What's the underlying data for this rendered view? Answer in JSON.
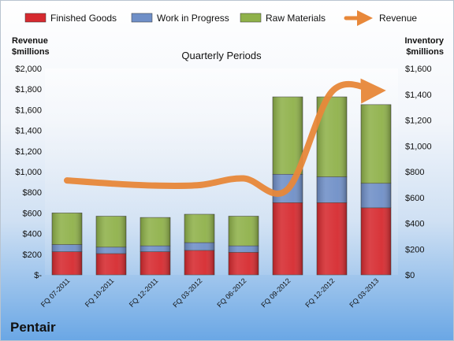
{
  "brand": "Pentair",
  "chart_data": {
    "type": "bar",
    "stacked": true,
    "subtitle": "Quarterly Periods",
    "categories": [
      "FQ 07-2011",
      "FQ 10-2011",
      "FQ 12-2011",
      "FQ 03-2012",
      "FQ 06-2012",
      "FQ 09-2012",
      "FQ 12-2012",
      "FQ 03-2013"
    ],
    "series": [
      {
        "name": "Finished Goods",
        "type": "bar",
        "axis": "right",
        "color": "#d62a2f",
        "values": [
          180,
          165,
          180,
          190,
          175,
          560,
          560,
          520
        ]
      },
      {
        "name": "Work in Progress",
        "type": "bar",
        "axis": "right",
        "color": "#6f8fc7",
        "values": [
          55,
          50,
          45,
          60,
          50,
          220,
          200,
          190
        ]
      },
      {
        "name": "Raw Materials",
        "type": "bar",
        "axis": "right",
        "color": "#8fb14a",
        "values": [
          245,
          240,
          220,
          220,
          230,
          600,
          620,
          610
        ]
      },
      {
        "name": "Revenue",
        "type": "line",
        "axis": "left",
        "color": "#e8883a",
        "values": [
          915,
          885,
          865,
          870,
          935,
          830,
          1775,
          1785
        ]
      }
    ],
    "left_axis": {
      "title_lines": [
        "Revenue",
        "$millions"
      ],
      "min": 0,
      "max": 2000,
      "step": 200,
      "tick_labels": [
        "$-",
        "$200",
        "$400",
        "$600",
        "$800",
        "$1,000",
        "$1,200",
        "$1,400",
        "$1,600",
        "$1,800",
        "$2,000"
      ]
    },
    "right_axis": {
      "title_lines": [
        "Inventory",
        "$millions"
      ],
      "min": 0,
      "max": 1600,
      "step": 200,
      "tick_labels": [
        "$0",
        "$200",
        "$400",
        "$600",
        "$800",
        "$1,000",
        "$1,200",
        "$1,400",
        "$1,600"
      ]
    },
    "legend_position": "top",
    "grid": false
  }
}
